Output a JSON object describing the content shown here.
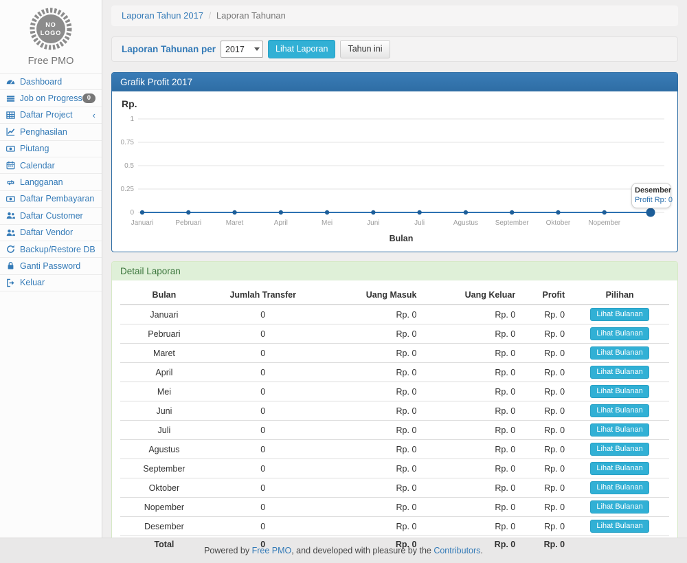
{
  "brand": {
    "logo_text": "NO LOGO",
    "name": "Free PMO"
  },
  "sidebar": {
    "items": [
      {
        "icon": "dashboard-icon",
        "label": "Dashboard"
      },
      {
        "icon": "tasks-icon",
        "label": "Job on Progress",
        "badge": "0"
      },
      {
        "icon": "table-icon",
        "label": "Daftar Project",
        "chevron": true
      },
      {
        "icon": "line-chart-icon",
        "label": "Penghasilan"
      },
      {
        "icon": "money-icon",
        "label": "Piutang"
      },
      {
        "icon": "calendar-icon",
        "label": "Calendar"
      },
      {
        "icon": "retweet-icon",
        "label": "Langganan"
      },
      {
        "icon": "money-icon",
        "label": "Daftar Pembayaran"
      },
      {
        "icon": "users-icon",
        "label": "Daftar Customer"
      },
      {
        "icon": "users-icon",
        "label": "Daftar Vendor"
      },
      {
        "icon": "refresh-icon",
        "label": "Backup/Restore DB"
      },
      {
        "icon": "lock-icon",
        "label": "Ganti Password"
      },
      {
        "icon": "signout-icon",
        "label": "Keluar"
      }
    ]
  },
  "breadcrumb": {
    "link": "Laporan Tahun 2017",
    "separator": "/",
    "current": "Laporan Tahunan"
  },
  "filter_bar": {
    "label": "Laporan Tahunan per",
    "year_select": {
      "value": "2017"
    },
    "submit_label": "Lihat Laporan",
    "current_year_label": "Tahun ini"
  },
  "chart_panel": {
    "title": "Grafik Profit 2017"
  },
  "chart_data": {
    "type": "line",
    "title": "Grafik Profit 2017",
    "x": [
      "Januari",
      "Pebruari",
      "Maret",
      "April",
      "Mei",
      "Juni",
      "Juli",
      "Agustus",
      "September",
      "Oktober",
      "Nopember",
      "Desember"
    ],
    "series": [
      {
        "name": "Profit",
        "values": [
          0,
          0,
          0,
          0,
          0,
          0,
          0,
          0,
          0,
          0,
          0,
          0
        ]
      }
    ],
    "xlabel": "Bulan",
    "ylabel": "Rp.",
    "ylim": [
      0,
      1
    ],
    "yticks": [
      0,
      0.25,
      0.5,
      0.75,
      1
    ],
    "grid": true,
    "legend": "none",
    "hidden_last_x_label": true,
    "highlighted_point": {
      "x": "Desember",
      "value": 0
    }
  },
  "tooltip": {
    "title": "Desember",
    "value": "Profit Rp: 0"
  },
  "detail_panel": {
    "title": "Detail Laporan",
    "table": {
      "headers": [
        "Bulan",
        "Jumlah Transfer",
        "Uang Masuk",
        "Uang Keluar",
        "Profit",
        "Pilihan"
      ],
      "action_label": "Lihat Bulanan",
      "rows": [
        {
          "bulan": "Januari",
          "jumlah_transfer": "0",
          "uang_masuk": "Rp. 0",
          "uang_keluar": "Rp. 0",
          "profit": "Rp. 0"
        },
        {
          "bulan": "Pebruari",
          "jumlah_transfer": "0",
          "uang_masuk": "Rp. 0",
          "uang_keluar": "Rp. 0",
          "profit": "Rp. 0"
        },
        {
          "bulan": "Maret",
          "jumlah_transfer": "0",
          "uang_masuk": "Rp. 0",
          "uang_keluar": "Rp. 0",
          "profit": "Rp. 0"
        },
        {
          "bulan": "April",
          "jumlah_transfer": "0",
          "uang_masuk": "Rp. 0",
          "uang_keluar": "Rp. 0",
          "profit": "Rp. 0"
        },
        {
          "bulan": "Mei",
          "jumlah_transfer": "0",
          "uang_masuk": "Rp. 0",
          "uang_keluar": "Rp. 0",
          "profit": "Rp. 0"
        },
        {
          "bulan": "Juni",
          "jumlah_transfer": "0",
          "uang_masuk": "Rp. 0",
          "uang_keluar": "Rp. 0",
          "profit": "Rp. 0"
        },
        {
          "bulan": "Juli",
          "jumlah_transfer": "0",
          "uang_masuk": "Rp. 0",
          "uang_keluar": "Rp. 0",
          "profit": "Rp. 0"
        },
        {
          "bulan": "Agustus",
          "jumlah_transfer": "0",
          "uang_masuk": "Rp. 0",
          "uang_keluar": "Rp. 0",
          "profit": "Rp. 0"
        },
        {
          "bulan": "September",
          "jumlah_transfer": "0",
          "uang_masuk": "Rp. 0",
          "uang_keluar": "Rp. 0",
          "profit": "Rp. 0"
        },
        {
          "bulan": "Oktober",
          "jumlah_transfer": "0",
          "uang_masuk": "Rp. 0",
          "uang_keluar": "Rp. 0",
          "profit": "Rp. 0"
        },
        {
          "bulan": "Nopember",
          "jumlah_transfer": "0",
          "uang_masuk": "Rp. 0",
          "uang_keluar": "Rp. 0",
          "profit": "Rp. 0"
        },
        {
          "bulan": "Desember",
          "jumlah_transfer": "0",
          "uang_masuk": "Rp. 0",
          "uang_keluar": "Rp. 0",
          "profit": "Rp. 0"
        }
      ],
      "total": {
        "bulan": "Total",
        "jumlah_transfer": "0",
        "uang_masuk": "Rp. 0",
        "uang_keluar": "Rp. 0",
        "profit": "Rp. 0"
      }
    }
  },
  "footer": {
    "prefix": "Powered by ",
    "link1": "Free PMO",
    "middle": ", and developed with pleasure by the ",
    "link2": "Contributors",
    "suffix": "."
  },
  "colors": {
    "link_blue": "#337ab7",
    "chart_heading_bg": "#2e6da4",
    "info_button": "#31b0d5",
    "success_heading_bg": "#dff0d8",
    "success_heading_text": "#3c763d",
    "line_color": "#2d72b2",
    "point_color": "#1d5e99",
    "badge_bg": "#777777",
    "grid_color": "#e3e3e3"
  }
}
